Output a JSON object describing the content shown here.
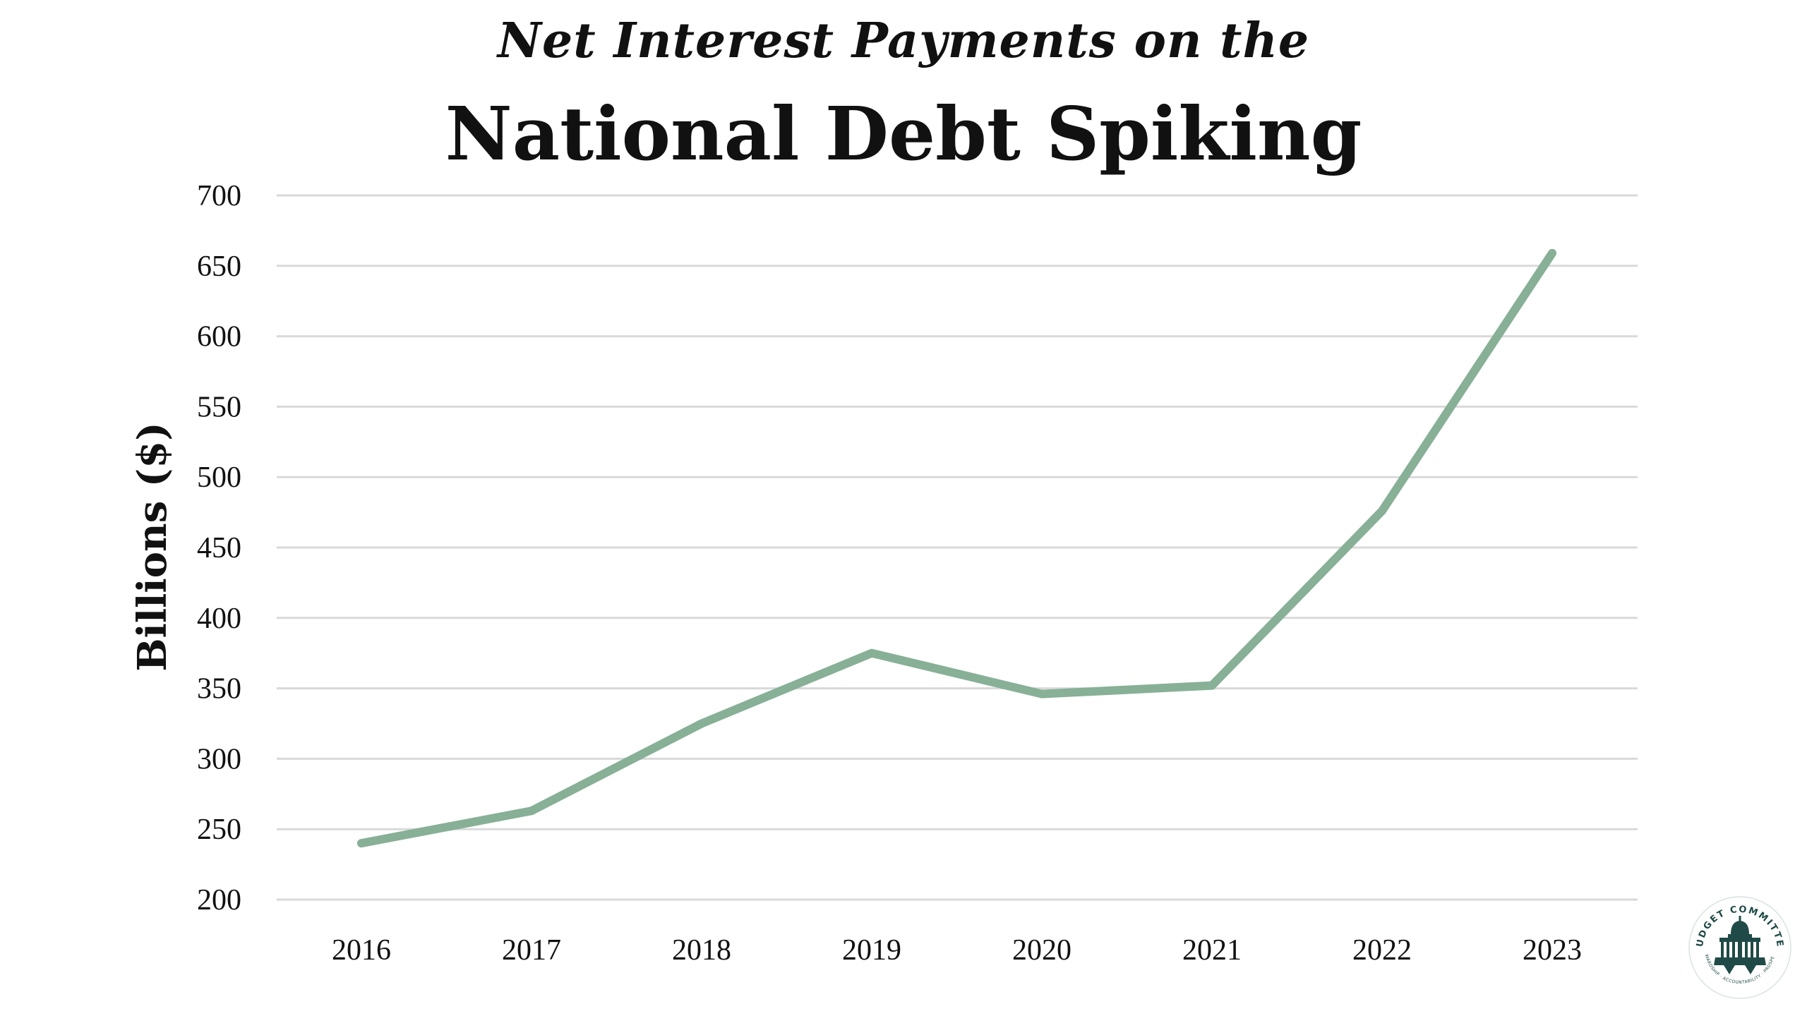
{
  "title_line1": "Net Interest Payments on the",
  "title_line2": "National Debt Spiking",
  "logo": {
    "arc_text": "BUDGET COMMITTEE",
    "motto": "STEWARDSHIP · ACCOUNTABILITY · PROSPERITY",
    "icon": "capitol-dome-icon",
    "color": "#1f4a47"
  },
  "chart_data": {
    "type": "line",
    "title": "Net Interest Payments on the National Debt Spiking",
    "xlabel": "",
    "ylabel": "Billions ($)",
    "x": [
      "2016",
      "2017",
      "2018",
      "2019",
      "2020",
      "2021",
      "2022",
      "2023"
    ],
    "series": [
      {
        "values": [
          240,
          263,
          325,
          375,
          346,
          352,
          476,
          659
        ],
        "color": "#87b096"
      }
    ],
    "ylim": [
      200,
      700
    ],
    "yticks": [
      "200",
      "250",
      "300",
      "350",
      "400",
      "450",
      "500",
      "550",
      "600",
      "650",
      "700"
    ],
    "grid": true,
    "gridColor": "#d9d9d9",
    "legend": "none"
  }
}
